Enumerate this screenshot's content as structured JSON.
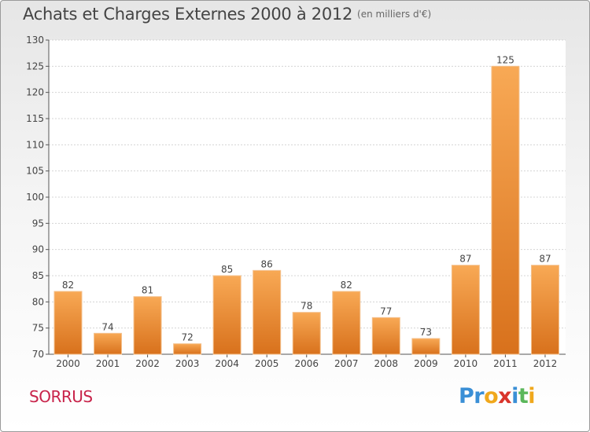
{
  "header": {
    "title": "Achats et Charges Externes 2000 à 2012",
    "unit_note": "(en milliers d'€)"
  },
  "commune": "SORRUS",
  "logo": {
    "parts": [
      "Pr",
      "o",
      "x",
      "i",
      "t",
      "i"
    ]
  },
  "chart_data": {
    "type": "bar",
    "categories": [
      "2000",
      "2001",
      "2002",
      "2003",
      "2004",
      "2005",
      "2006",
      "2007",
      "2008",
      "2009",
      "2010",
      "2011",
      "2012"
    ],
    "values": [
      82,
      74,
      81,
      72,
      85,
      86,
      78,
      82,
      77,
      73,
      87,
      125,
      87
    ],
    "ylim": [
      70,
      130
    ],
    "yticks": [
      70,
      75,
      80,
      85,
      90,
      95,
      100,
      105,
      110,
      115,
      120,
      125,
      130
    ],
    "grid": true,
    "bar_color": "#f0922f"
  }
}
